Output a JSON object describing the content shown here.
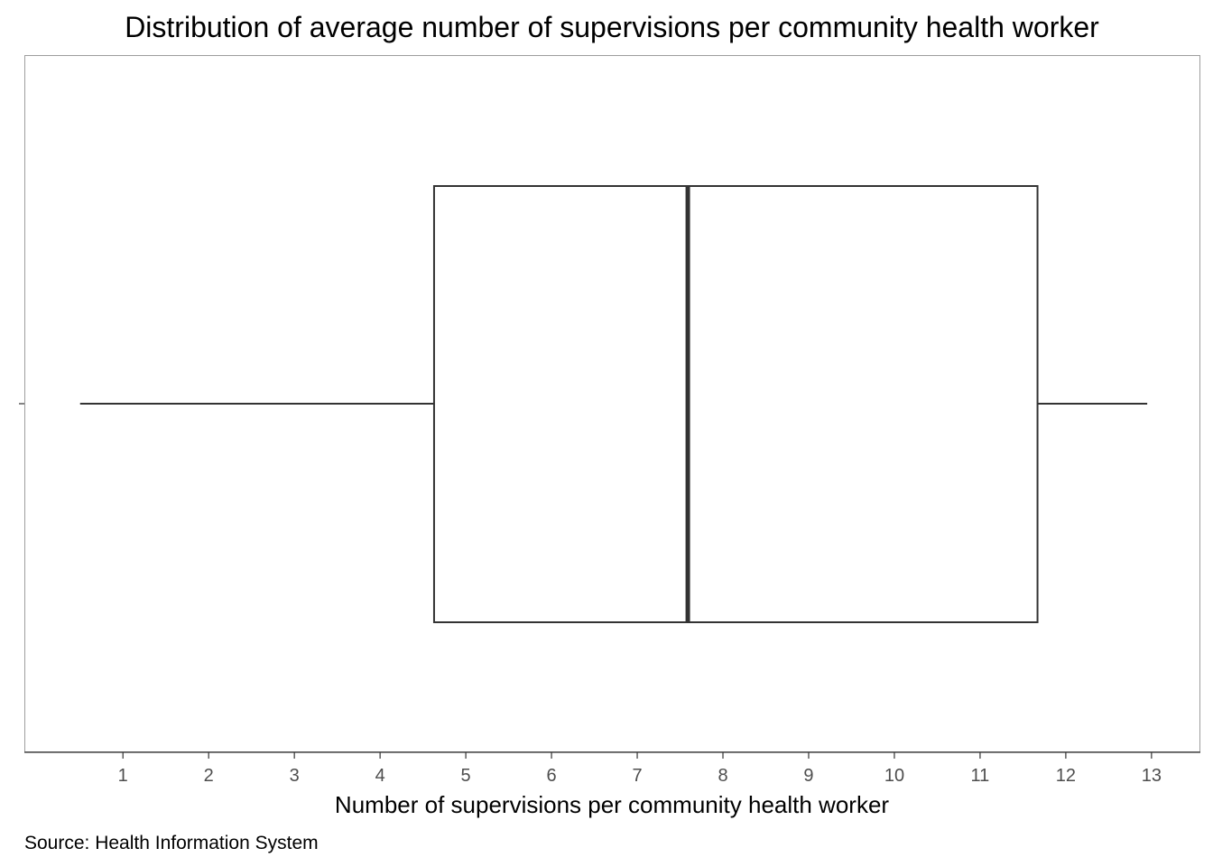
{
  "chart_data": {
    "type": "boxplot",
    "title": "Distribution of average number of supervisions per community health worker",
    "xlabel": "Number of supervisions per community health worker",
    "ylabel": "",
    "caption": "Source: Health Information System",
    "orientation": "horizontal",
    "xlim": [
      -0.15,
      13.57
    ],
    "x_ticks": [
      1,
      2,
      3,
      4,
      5,
      6,
      7,
      8,
      9,
      10,
      11,
      12,
      13
    ],
    "grid": false,
    "legend": "none",
    "box": {
      "whisker_low": 0.5,
      "q1": 4.63,
      "median": 7.59,
      "q3": 11.67,
      "whisker_high": 12.95
    },
    "colors": {
      "box_fill": "#ffffff",
      "box_stroke": "#333333",
      "axis": "#333333",
      "panel_border": "#9e9e9e",
      "tick_label": "#4d4d4d"
    }
  }
}
